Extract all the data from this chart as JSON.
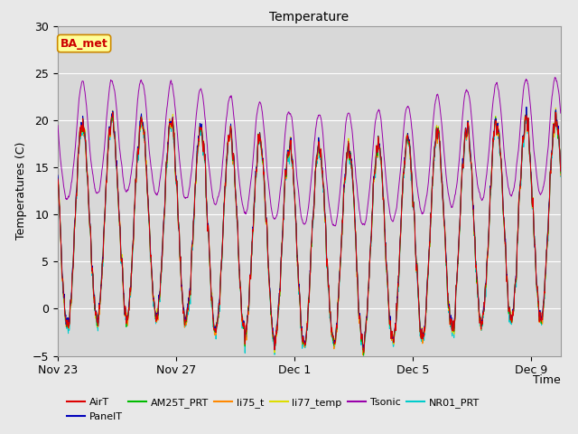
{
  "title": "Temperature",
  "xlabel": "Time",
  "ylabel": "Temperatures (C)",
  "ylim": [
    -5,
    30
  ],
  "yticks": [
    -5,
    0,
    5,
    10,
    15,
    20,
    25,
    30
  ],
  "xtick_labels": [
    "Nov 23",
    "Nov 27",
    "Dec 1",
    "Dec 5",
    "Dec 9"
  ],
  "xtick_days": [
    0,
    4,
    8,
    12,
    16
  ],
  "line_colors": {
    "AirT": "#dd0000",
    "PanelT": "#0000bb",
    "AM25T_PRT": "#00bb00",
    "li75_t": "#ff8800",
    "li77_temp": "#dddd00",
    "Tsonic": "#9900aa",
    "NR01_PRT": "#00cccc"
  },
  "annotation_text": "BA_met",
  "annotation_color": "#cc0000",
  "annotation_bg": "#ffff99",
  "annotation_border": "#cc8800",
  "fig_bg": "#e8e8e8",
  "plot_bg": "#d8d8d8",
  "grid_color": "#ffffff",
  "title_fontsize": 10,
  "axis_fontsize": 9,
  "tick_fontsize": 9,
  "legend_fontsize": 8
}
